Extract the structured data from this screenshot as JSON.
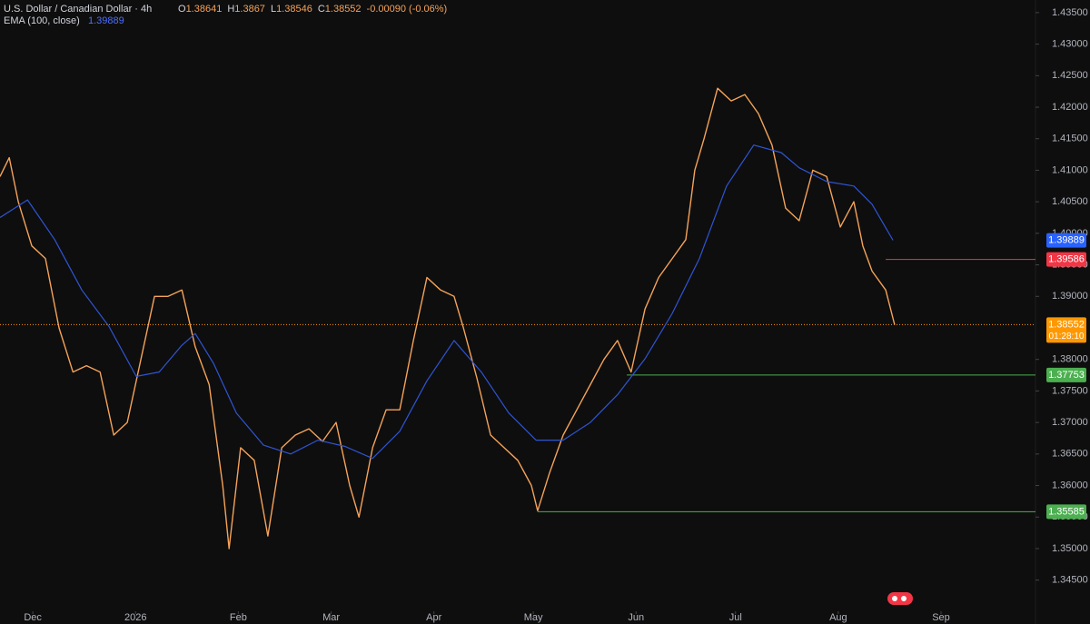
{
  "chart_data": {
    "type": "line",
    "title": "U.S. Dollar / Canadian Dollar · 4h",
    "ohlc": [
      {
        "label": "O",
        "value": 1.38641
      },
      {
        "label": "H",
        "value": 1.3867
      },
      {
        "label": "L",
        "value": 1.38546
      },
      {
        "label": "C",
        "value": 1.38552
      }
    ],
    "change": "-0.00090 (-0.06%)",
    "xlim": [
      -9.9,
      302.5
    ],
    "xticks": [
      {
        "value": 0,
        "label": "Dec"
      },
      {
        "value": 31,
        "label": "2026"
      },
      {
        "value": 62,
        "label": "Feb"
      },
      {
        "value": 90,
        "label": "Mar"
      },
      {
        "value": 121,
        "label": "Apr"
      },
      {
        "value": 151,
        "label": "May"
      },
      {
        "value": 182,
        "label": "Jun"
      },
      {
        "value": 212,
        "label": "Jul"
      },
      {
        "value": 243,
        "label": "Aug"
      },
      {
        "value": 274,
        "label": "Sep"
      }
    ],
    "ylim": [
      1.3402,
      1.437
    ],
    "yticks": [
      {
        "value": 1.345,
        "label": "1.34500"
      },
      {
        "value": 1.35,
        "label": "1.35000"
      },
      {
        "value": 1.355,
        "label": "1.35500"
      },
      {
        "value": 1.36,
        "label": "1.36000"
      },
      {
        "value": 1.365,
        "label": "1.36500"
      },
      {
        "value": 1.37,
        "label": "1.37000"
      },
      {
        "value": 1.375,
        "label": "1.37500"
      },
      {
        "value": 1.38,
        "label": "1.38000"
      },
      {
        "value": 1.39,
        "label": "1.39000"
      },
      {
        "value": 1.395,
        "label": "1.39500"
      },
      {
        "value": 1.4,
        "label": "1.40000"
      },
      {
        "value": 1.405,
        "label": "1.40500"
      },
      {
        "value": 1.41,
        "label": "1.41000"
      },
      {
        "value": 1.415,
        "label": "1.41500"
      },
      {
        "value": 1.42,
        "label": "1.42000"
      },
      {
        "value": 1.425,
        "label": "1.42500"
      },
      {
        "value": 1.43,
        "label": "1.43000"
      },
      {
        "value": 1.435,
        "label": "1.43500"
      }
    ],
    "series": [
      {
        "name": "U.S. Dollar / Canadian Dollar",
        "color": "#f5a35a",
        "x": [
          -9.9,
          -7.1,
          -4.4,
          -0.3,
          3.8,
          7.9,
          12.1,
          16.2,
          20.3,
          24.4,
          28.5,
          32.6,
          36.7,
          40.8,
          45.0,
          49.0,
          53.2,
          57.3,
          59.2,
          62.7,
          66.8,
          70.9,
          75.1,
          79.2,
          83.3,
          87.4,
          91.5,
          95.6,
          98.4,
          102.5,
          106.6,
          110.7,
          114.8,
          118.9,
          123.0,
          127.1,
          129.9,
          134.0,
          138.1,
          142.2,
          146.3,
          150.4,
          152.3,
          155.9,
          160.0,
          164.1,
          168.2,
          172.3,
          176.4,
          180.5,
          184.7,
          188.8,
          192.9,
          197.0,
          199.7,
          202.5,
          206.6,
          210.7,
          214.8,
          218.9,
          223.0,
          227.1,
          231.2,
          235.3,
          239.5,
          243.6,
          247.7,
          250.4,
          253.2,
          257.3,
          260.0
        ],
        "values": [
          1.409,
          1.412,
          1.405,
          1.398,
          1.396,
          1.385,
          1.378,
          1.379,
          1.378,
          1.368,
          1.37,
          1.38,
          1.39,
          1.39,
          1.391,
          1.382,
          1.376,
          1.36,
          1.35,
          1.366,
          1.364,
          1.352,
          1.366,
          1.368,
          1.369,
          1.367,
          1.37,
          1.36,
          1.355,
          1.366,
          1.372,
          1.372,
          1.383,
          1.393,
          1.391,
          1.39,
          1.385,
          1.377,
          1.368,
          1.366,
          1.364,
          1.36,
          1.356,
          1.362,
          1.368,
          1.372,
          1.376,
          1.38,
          1.383,
          1.378,
          1.388,
          1.393,
          1.396,
          1.399,
          1.41,
          1.415,
          1.423,
          1.421,
          1.422,
          1.419,
          1.414,
          1.404,
          1.402,
          1.41,
          1.409,
          1.401,
          1.405,
          1.398,
          1.394,
          1.391,
          1.3855
        ]
      },
      {
        "name": "EMA (100, close)",
        "color": "#2f55d4",
        "last_value": 1.39889,
        "x": [
          -9.9,
          -1.6,
          6.6,
          14.8,
          23.0,
          31.2,
          38.1,
          44.9,
          49.0,
          54.5,
          61.4,
          69.6,
          77.8,
          86.0,
          94.2,
          102.5,
          110.7,
          118.9,
          127.1,
          135.3,
          143.6,
          151.8,
          160.0,
          168.2,
          176.4,
          184.7,
          192.9,
          201.1,
          209.3,
          217.5,
          225.8,
          231.2,
          239.5,
          247.7,
          253.2,
          259.5
        ],
        "values": [
          1.4025,
          1.4053,
          1.399,
          1.391,
          1.3852,
          1.3773,
          1.378,
          1.3822,
          1.3841,
          1.3794,
          1.3715,
          1.3664,
          1.365,
          1.3672,
          1.3662,
          1.3643,
          1.3686,
          1.3766,
          1.383,
          1.378,
          1.3715,
          1.3672,
          1.3672,
          1.37,
          1.3744,
          1.3801,
          1.3873,
          1.396,
          1.4075,
          1.414,
          1.4128,
          1.4104,
          1.4082,
          1.4075,
          1.4046,
          1.3989
        ]
      }
    ],
    "levels": [
      {
        "value": 1.39586,
        "color": "#f23645",
        "from": 257.3
      },
      {
        "value": 1.38552,
        "color": "#ff9800",
        "style": "dotted",
        "countdown": "01:28:10"
      },
      {
        "value": 1.37753,
        "color": "#4caf50",
        "from": 179.2
      },
      {
        "value": 1.35585,
        "color": "#4caf50",
        "from": 152.3
      }
    ]
  }
}
